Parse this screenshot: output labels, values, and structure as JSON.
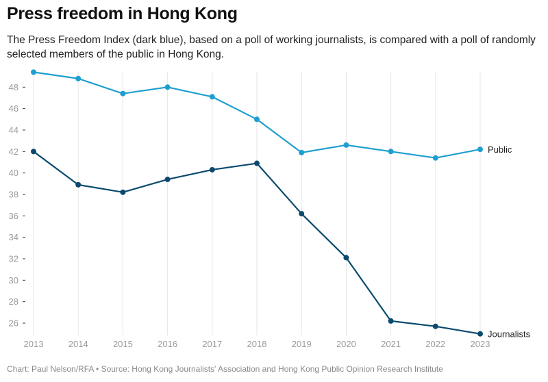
{
  "chart_data": {
    "type": "line",
    "title": "Press freedom in Hong Kong",
    "subtitle": "The Press Freedom Index (dark blue), based on a poll of working journalists, is compared with a poll of randomly selected members of the public in Hong Kong.",
    "footer": "Chart: Paul Nelson/RFA • Source: Hong Kong Journalists' Association and Hong Kong Public Opinion Research Institute",
    "x": [
      2013,
      2014,
      2015,
      2016,
      2017,
      2018,
      2019,
      2020,
      2021,
      2022,
      2023
    ],
    "ylim": [
      25,
      49.4
    ],
    "yticks": [
      26,
      28,
      30,
      32,
      34,
      36,
      38,
      40,
      42,
      44,
      46,
      48
    ],
    "grid": "vertical",
    "legend": "direct labels at line ends (right)",
    "series": [
      {
        "name": "Public",
        "color": "#1f9fcf",
        "values": [
          49.4,
          48.8,
          47.4,
          48.0,
          47.1,
          45.0,
          41.9,
          42.6,
          42.0,
          41.4,
          42.2
        ]
      },
      {
        "name": "Journalists",
        "color": "#0b4a6e",
        "values": [
          42.0,
          38.9,
          38.2,
          39.4,
          40.3,
          40.9,
          36.2,
          32.1,
          26.2,
          25.7,
          25.0
        ]
      }
    ]
  }
}
